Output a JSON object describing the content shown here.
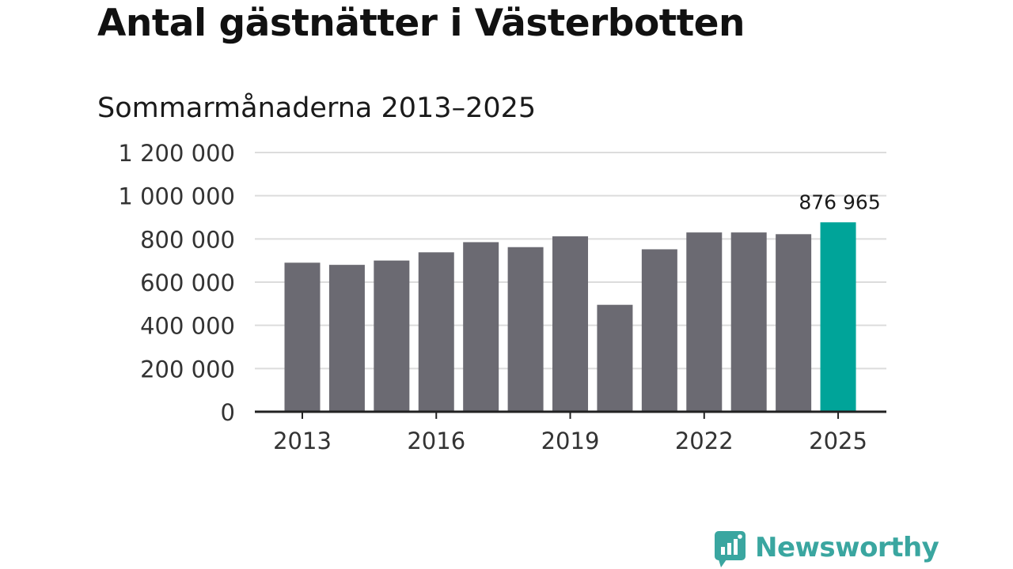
{
  "title": "Antal gästnätter i Västerbotten",
  "subtitle": "Sommarmånaderna 2013–2025",
  "brand": {
    "name": "Newsworthy",
    "color": "#3aa6a0"
  },
  "chart_data": {
    "type": "bar",
    "title": "Antal gästnätter i Västerbotten",
    "subtitle": "Sommarmånaderna 2013–2025",
    "categories": [
      "2013",
      "2014",
      "2015",
      "2016",
      "2017",
      "2018",
      "2019",
      "2020",
      "2021",
      "2022",
      "2023",
      "2024",
      "2025"
    ],
    "values": [
      690000,
      680000,
      700000,
      738000,
      785000,
      762000,
      812000,
      495000,
      752000,
      830000,
      830000,
      822000,
      876965
    ],
    "xticks": [
      "2013",
      "2016",
      "2019",
      "2022",
      "2025"
    ],
    "yticks": [
      0,
      200000,
      400000,
      600000,
      800000,
      1000000,
      1200000
    ],
    "ytick_labels": [
      "0",
      "200 000",
      "400 000",
      "600 000",
      "800 000",
      "1 000 000",
      "1 200 000"
    ],
    "ylim": [
      0,
      1200000
    ],
    "highlight_label": "876 965",
    "colors": {
      "bar": "#6b6a72",
      "highlight": "#00a499",
      "grid": "#dcdcdc",
      "axis": "#222222"
    },
    "grid": true
  }
}
